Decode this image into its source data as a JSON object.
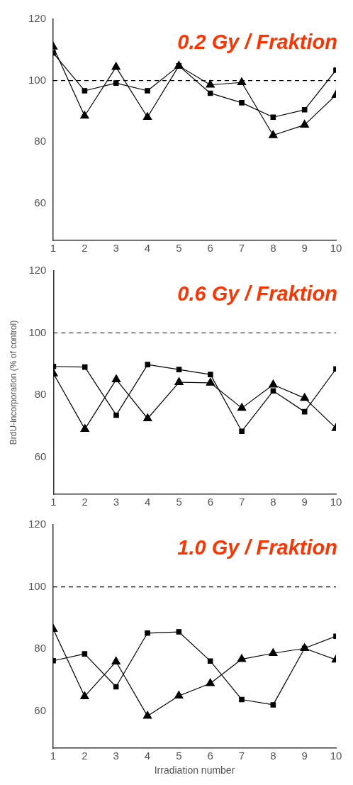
{
  "chart_data": [
    {
      "type": "line",
      "title": "0.2 Gy / Fraktion",
      "x": [
        1,
        2,
        3,
        4,
        5,
        6,
        7,
        8,
        9,
        10
      ],
      "xlim": [
        1,
        10
      ],
      "xticks": [
        1,
        2,
        3,
        4,
        5,
        6,
        7,
        8,
        9,
        10
      ],
      "ylim": [
        48,
        120
      ],
      "yticks": [
        60,
        80,
        100,
        120
      ],
      "grid": false,
      "legend": false,
      "series": [
        {
          "color": "#000000",
          "marker": "square",
          "values": [
            109,
            96.7,
            99.2,
            96.7,
            104.8,
            95.9,
            92.8,
            88.1,
            90.5,
            103.4
          ]
        },
        {
          "color": "#000000",
          "marker": "triangle",
          "values": [
            111,
            88.5,
            104.4,
            88.1,
            104.8,
            98.6,
            99.4,
            82.2,
            85.6,
            95.3
          ]
        }
      ],
      "ref_lines": [
        {
          "axis": "y",
          "value": 100,
          "line_style": "dashed",
          "color": "#000000"
        }
      ]
    },
    {
      "type": "line",
      "title": "0.6 Gy / Fraktion",
      "ylabel": "BrdU-incorporation (% of control)",
      "x": [
        1,
        2,
        3,
        4,
        5,
        6,
        7,
        8,
        9,
        10
      ],
      "xlim": [
        1,
        10
      ],
      "xticks": [
        1,
        2,
        3,
        4,
        5,
        6,
        7,
        8,
        9,
        10
      ],
      "ylim": [
        48,
        120
      ],
      "yticks": [
        60,
        80,
        100,
        120
      ],
      "grid": false,
      "legend": false,
      "series": [
        {
          "color": "#000000",
          "marker": "square",
          "values": [
            89.2,
            89,
            73.5,
            89.8,
            88.2,
            86.6,
            68.3,
            81.3,
            74.6,
            88.4
          ]
        },
        {
          "color": "#000000",
          "marker": "triangle",
          "values": [
            86.9,
            69,
            85,
            72.4,
            84.1,
            83.9,
            75.8,
            83.3,
            79,
            69.3
          ]
        }
      ],
      "ref_lines": [
        {
          "axis": "y",
          "value": 100,
          "line_style": "dashed",
          "color": "#000000"
        }
      ]
    },
    {
      "type": "line",
      "title": "1.0 Gy / Fraktion",
      "xlabel": "Irradiation number",
      "x": [
        1,
        2,
        3,
        4,
        5,
        6,
        7,
        8,
        9,
        10
      ],
      "xlim": [
        1,
        10
      ],
      "xticks": [
        1,
        2,
        3,
        4,
        5,
        6,
        7,
        8,
        9,
        10
      ],
      "ylim": [
        48,
        120
      ],
      "yticks": [
        60,
        80,
        100,
        120
      ],
      "grid": false,
      "legend": false,
      "series": [
        {
          "color": "#000000",
          "marker": "square",
          "values": [
            76.2,
            78.4,
            67.8,
            85.1,
            85.5,
            76.1,
            63.7,
            62,
            80.2,
            84.1
          ]
        },
        {
          "color": "#000000",
          "marker": "triangle",
          "values": [
            86.4,
            64.7,
            75.9,
            58.4,
            64.9,
            68.9,
            76.7,
            78.6,
            80.2,
            76.5
          ]
        }
      ],
      "ref_lines": [
        {
          "axis": "y",
          "value": 100,
          "line_style": "dashed",
          "color": "#000000"
        }
      ]
    }
  ]
}
